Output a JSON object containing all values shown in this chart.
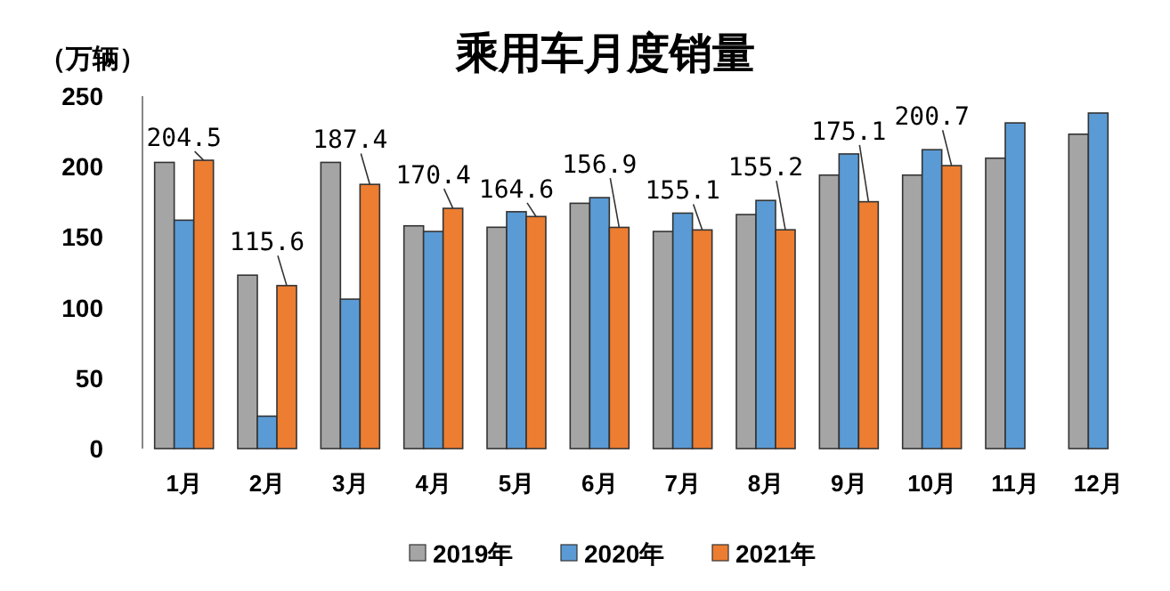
{
  "chart_data": {
    "type": "bar",
    "title": "乘用车月度销量",
    "ylabel": "（万辆）",
    "categories": [
      "1月",
      "2月",
      "3月",
      "4月",
      "5月",
      "6月",
      "7月",
      "8月",
      "9月",
      "10月",
      "11月",
      "12月"
    ],
    "series": [
      {
        "name": "2019年",
        "color": "#a5a5a5",
        "values": [
          203,
          123,
          203,
          158,
          157,
          174,
          154,
          166,
          194,
          194,
          206,
          223
        ]
      },
      {
        "name": "2020年",
        "color": "#5b9bd5",
        "values": [
          162,
          23,
          106,
          154,
          168,
          178,
          167,
          176,
          209,
          212,
          231,
          238
        ]
      },
      {
        "name": "2021年",
        "color": "#ed7d31",
        "values": [
          204.5,
          115.6,
          187.4,
          170.4,
          164.6,
          156.9,
          155.1,
          155.2,
          175.1,
          200.7,
          null,
          null
        ],
        "value_labels": [
          "204.5",
          "115.6",
          "187.4",
          "170.4",
          "164.6",
          "156.9",
          "155.1",
          "155.2",
          "175.1",
          "200.7",
          null,
          null
        ]
      }
    ],
    "ylim": [
      0,
      250
    ],
    "yticks": [
      0,
      50,
      100,
      150,
      200,
      250
    ],
    "legend": "bottom"
  }
}
